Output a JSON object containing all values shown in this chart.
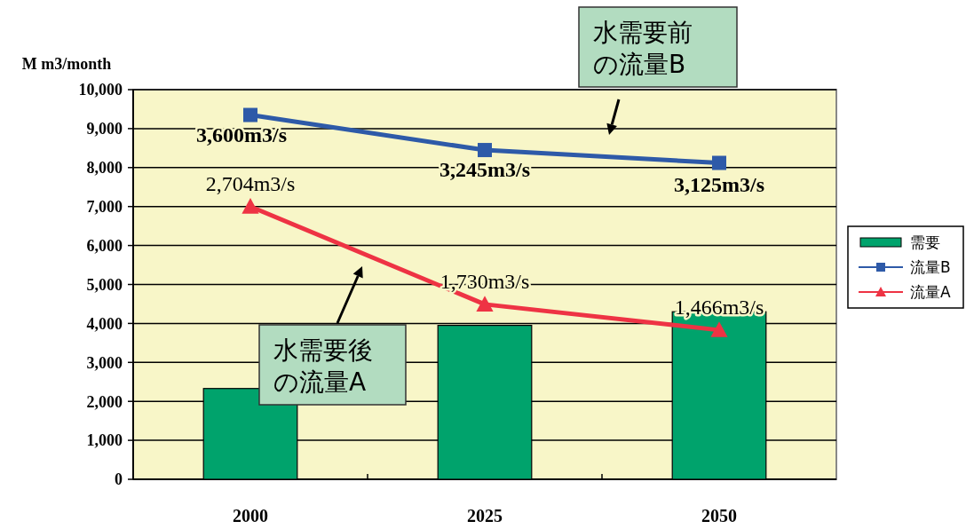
{
  "chart_data": {
    "type": "bar",
    "ylabel": "M m3/month",
    "categories": [
      "2000",
      "2025",
      "2050"
    ],
    "ylim": [
      0,
      10000
    ],
    "yticks": [
      {
        "value": 0,
        "label": "0"
      },
      {
        "value": 1000,
        "label": "1,000"
      },
      {
        "value": 2000,
        "label": "2,000"
      },
      {
        "value": 3000,
        "label": "3,000"
      },
      {
        "value": 4000,
        "label": "4,000"
      },
      {
        "value": 5000,
        "label": "5,000"
      },
      {
        "value": 6000,
        "label": "6,000"
      },
      {
        "value": 7000,
        "label": "7,000"
      },
      {
        "value": 8000,
        "label": "8,000"
      },
      {
        "value": 9000,
        "label": "9,000"
      },
      {
        "value": 10000,
        "label": "10,000"
      }
    ],
    "grid": "y",
    "legend": "right",
    "series": [
      {
        "name": "需要",
        "color": "#00a36c",
        "values": [
          2330,
          3950,
          4300
        ]
      },
      {
        "name": "流量B",
        "type": "line",
        "color": "#2e5aa8",
        "marker": "square",
        "values": [
          9350,
          8450,
          8120
        ]
      },
      {
        "name": "流量A",
        "type": "line",
        "color": "#ee3344",
        "marker": "triangle",
        "values": [
          7000,
          4490,
          3830
        ]
      }
    ],
    "annotations": [
      "水需要前の流量B",
      "水需要後の流量A",
      {
        "text": "3,600m3/s",
        "x": "2000",
        "y": 9350
      },
      {
        "text": "3,245m3/s",
        "x": "2025",
        "y": 8450
      },
      {
        "text": "3,125m3/s",
        "x": "2050",
        "y": 8120
      },
      {
        "text": "2,704m3/s",
        "x": "2000",
        "y": 7000
      },
      {
        "text": "1,730m3/s",
        "x": "2025",
        "y": 4490
      },
      {
        "text": "1,466m3/s",
        "x": "2050",
        "y": 3830
      }
    ]
  }
}
